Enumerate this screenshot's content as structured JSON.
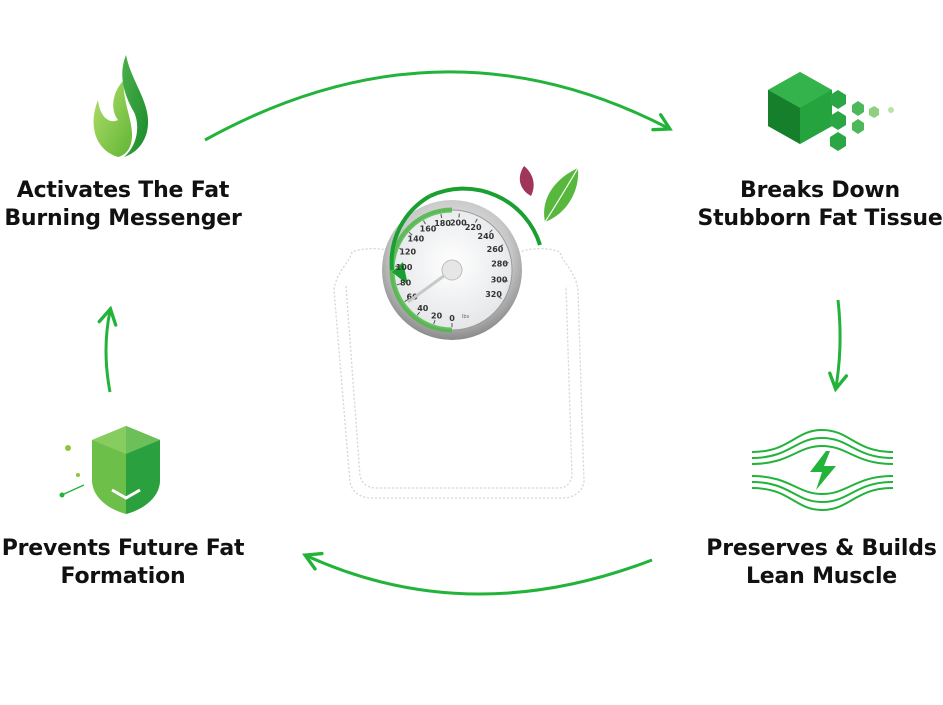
{
  "steps": [
    {
      "line1": "Activates The Fat",
      "line2": "Burning Messenger",
      "icon": "flame-icon"
    },
    {
      "line1": "Breaks Down",
      "line2": "Stubborn Fat Tissue",
      "icon": "hexagon-cells-icon"
    },
    {
      "line1": "Preserves & Builds",
      "line2": "Lean Muscle",
      "icon": "muscle-energy-icon"
    },
    {
      "line1": "Prevents Future Fat",
      "line2": "Formation",
      "icon": "shield-icon"
    }
  ],
  "scale": {
    "dial_numbers": [
      "0",
      "20",
      "40",
      "60",
      "80",
      "100",
      "120",
      "140",
      "160",
      "180",
      "200",
      "220",
      "240",
      "260",
      "280",
      "300",
      "320"
    ],
    "unit": "lbs"
  },
  "colors": {
    "primary_green": "#22b33a",
    "light_green": "#8cc63f",
    "dark_green": "#1e8e2e",
    "leaf_purple": "#a0355a"
  }
}
